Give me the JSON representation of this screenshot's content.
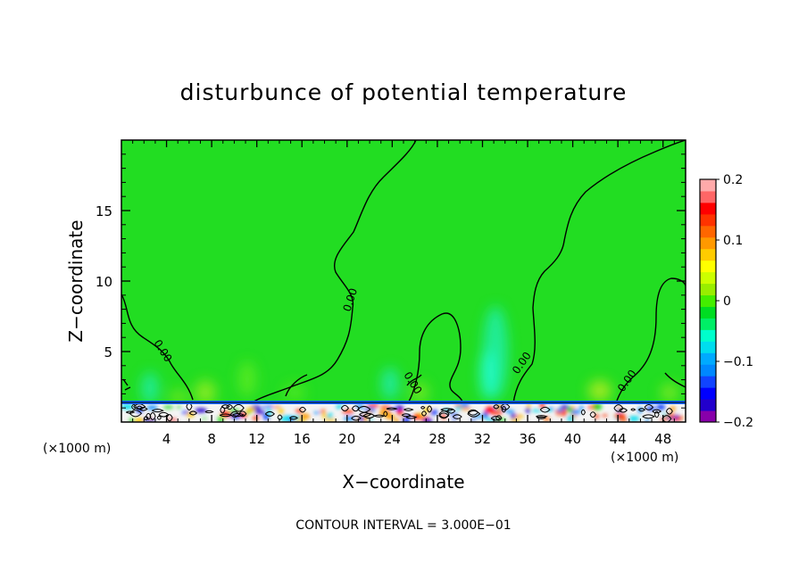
{
  "chart_data": {
    "type": "heatmap",
    "title": "disturbunce of potential temperature",
    "xlabel": "X−coordinate",
    "ylabel": "Z−coordinate",
    "x_unit_left": "(×1000 m)",
    "x_unit_right": "(×1000 m)",
    "footer": "CONTOUR INTERVAL = 3.000E−01",
    "xlim": [
      0,
      50
    ],
    "ylim": [
      0,
      20
    ],
    "x_ticks": [
      4,
      8,
      12,
      16,
      20,
      24,
      28,
      32,
      36,
      40,
      44,
      48
    ],
    "x_tick_labels": [
      "4",
      "8",
      "12",
      "16",
      "20",
      "24",
      "28",
      "32",
      "36",
      "40",
      "44",
      "48"
    ],
    "y_ticks": [
      5,
      10,
      15
    ],
    "y_tick_labels": [
      "5",
      "10",
      "15"
    ],
    "background_value": 0.0,
    "contour_label": "0.00",
    "colorbar": {
      "min": -0.2,
      "max": 0.2,
      "tick_values": [
        0.2,
        0.1,
        0,
        -0.1,
        -0.2
      ],
      "tick_labels": [
        "0.2",
        "0.1",
        "0",
        "−0.1",
        "−0.2"
      ],
      "colors": [
        "#8800aa",
        "#2200cc",
        "#0000ff",
        "#1144ff",
        "#0088ff",
        "#00aaff",
        "#00ddee",
        "#00ffcc",
        "#00ee66",
        "#00dd22",
        "#44ee00",
        "#99ee00",
        "#ccff00",
        "#ffff00",
        "#ffcc00",
        "#ff9900",
        "#ff6600",
        "#ff3300",
        "#ff0000",
        "#ff6666",
        "#ffaaaa"
      ]
    }
  }
}
